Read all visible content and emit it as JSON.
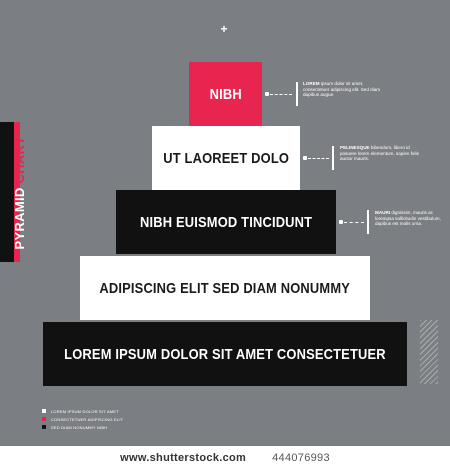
{
  "side_label": {
    "word1": "PYRAMID",
    "word2": "CHART"
  },
  "tiers": [
    {
      "label": "NIBH"
    },
    {
      "label": "UT LAOREET DOLO"
    },
    {
      "label": "NIBH EUISMOD TINCIDUNT"
    },
    {
      "label": "ADIPISCING ELIT SED DIAM NONUMMY"
    },
    {
      "label": "LOREM IPSUM DOLOR SIT AMET CONSECTETUER"
    }
  ],
  "notes": [
    {
      "title": "LOREM",
      "text": "ipsum dolor sit amet, consectetuer adipiscing elit. Sed diam dapibus augue."
    },
    {
      "title": "PELINESQUE",
      "text": "bibendum, libero id posuere lorem elementum, sapien felis auctor mauris."
    },
    {
      "title": "MAURI",
      "text": "dignissim, mauris ac lorempsa sollicitudin vestibulum, dapibus est molis urna."
    }
  ],
  "legend": [
    {
      "label": "LOREM IPSUM DOLOR SIT AMET",
      "color": "#ffffff"
    },
    {
      "label": "CONSECTETUER ADIPISCING ELIT",
      "color": "#e8254f"
    },
    {
      "label": "SED DIAM NONUMMY NIBH",
      "color": "#111111"
    }
  ],
  "colors": {
    "background": "#7b7e82",
    "accent": "#e8254f",
    "dark": "#111111",
    "light": "#ffffff"
  },
  "footer": {
    "watermark": "www.shutterstock.com",
    "image_id": "444076993"
  }
}
